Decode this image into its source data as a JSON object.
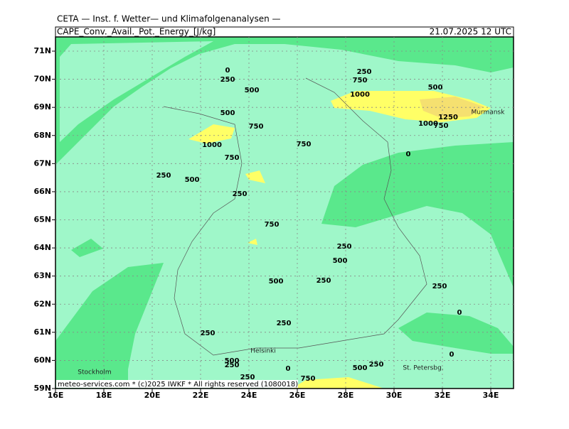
{
  "header": {
    "title": "CETA — Inst. f. Wetter— und Klimafolgenanalysen —",
    "field": "CAPE_Conv._Avail._Pot._Energy_[J/kg]",
    "datetime": "21.07.2025 12 UTC"
  },
  "axis": {
    "lat_labels": [
      "71N",
      "70N",
      "69N",
      "68N",
      "67N",
      "66N",
      "65N",
      "64N",
      "63N",
      "62N",
      "61N",
      "60N",
      "59N"
    ],
    "lon_labels": [
      "16E",
      "18E",
      "20E",
      "22E",
      "24E",
      "26E",
      "28E",
      "30E",
      "32E",
      "34E"
    ]
  },
  "map": {
    "contour_labels": [
      0,
      250,
      500,
      250,
      750,
      1000,
      500,
      500,
      750,
      1250,
      1000,
      750,
      1000,
      750,
      0,
      750,
      250,
      500,
      250,
      750,
      250,
      500,
      500,
      250,
      250,
      0,
      250,
      250,
      0,
      500,
      250,
      0,
      500,
      250,
      250,
      750
    ],
    "places": [
      "Murmansk",
      "Helsinki",
      "Stockholm",
      "St. Petersbg."
    ]
  },
  "footer": "meteo-services.com * (c)2025 IWKF * All rights reserved (1080018)"
}
